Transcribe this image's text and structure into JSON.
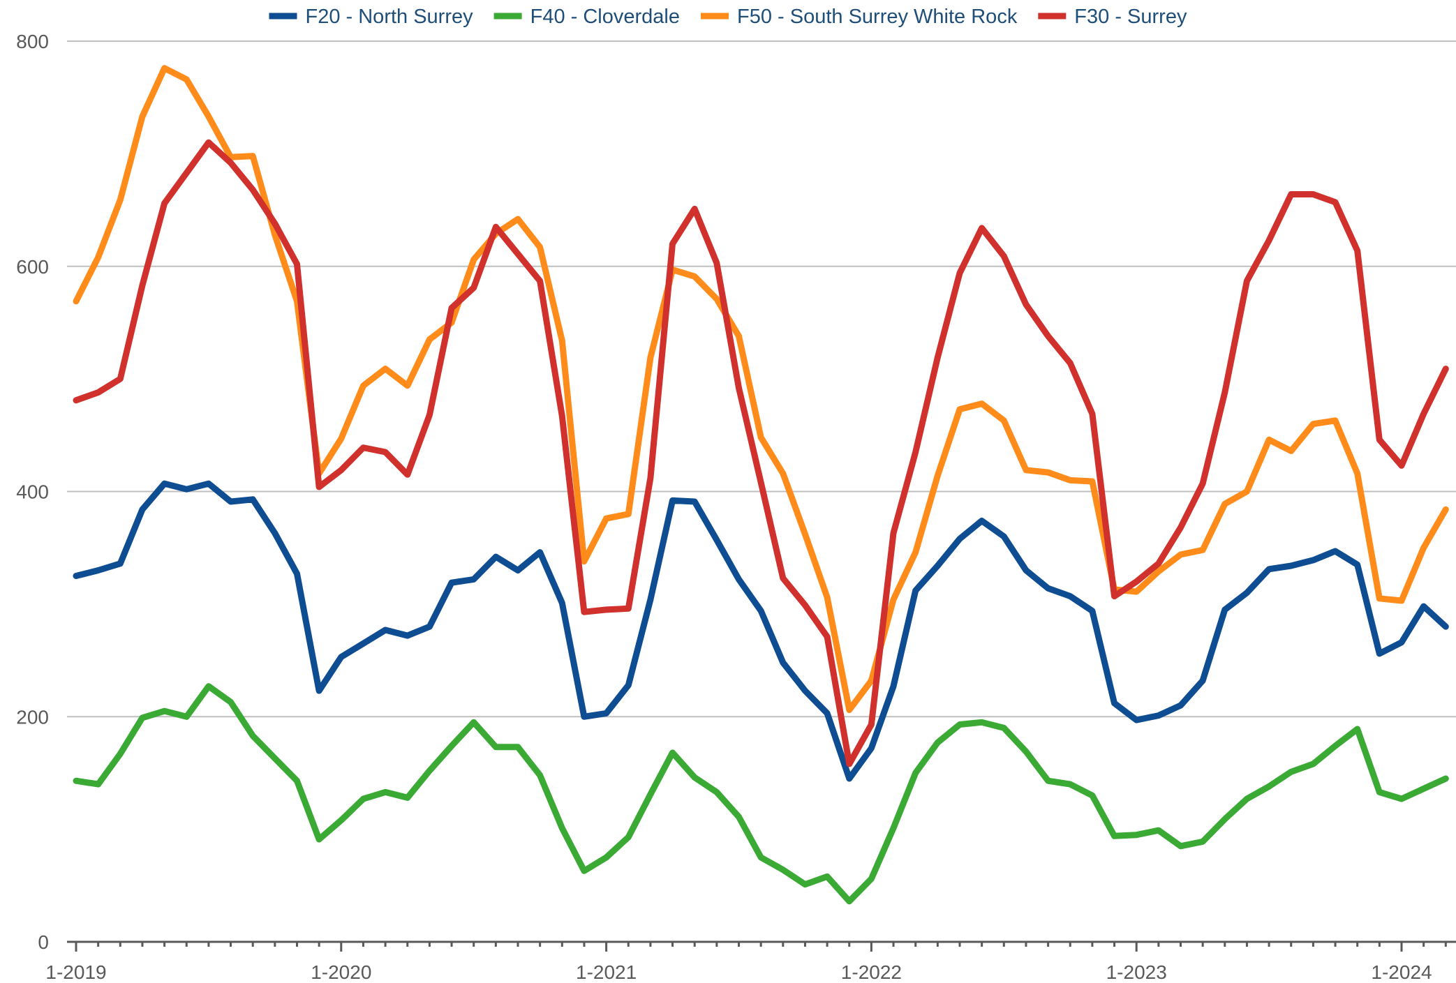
{
  "chart_data": {
    "type": "line",
    "title": "",
    "xlabel": "",
    "ylabel": "",
    "ylim": [
      0,
      800
    ],
    "yticks": [
      0,
      200,
      400,
      600,
      800
    ],
    "xticks": [
      "1-2019",
      "1-2020",
      "1-2021",
      "1-2022",
      "1-2023",
      "1-2024"
    ],
    "grid": true,
    "legend": "top",
    "x_start": "1-2019",
    "x_interval": "month",
    "series": [
      {
        "name": "F20 - North Surrey",
        "color": "#0e4d92",
        "values": [
          325,
          330,
          336,
          384,
          407,
          402,
          407,
          391,
          393,
          363,
          327,
          223,
          253,
          265,
          277,
          272,
          280,
          319,
          322,
          342,
          330,
          346,
          301,
          200,
          203,
          228,
          304,
          392,
          391,
          357,
          322,
          294,
          248,
          223,
          203,
          145,
          172,
          227,
          312,
          334,
          358,
          374,
          360,
          330,
          314,
          307,
          294,
          212,
          197,
          201,
          210,
          232,
          295,
          310,
          331,
          334,
          339,
          347,
          335,
          256,
          266,
          298,
          280
        ]
      },
      {
        "name": "F40 - Cloverdale",
        "color": "#3aaa35",
        "values": [
          143,
          140,
          167,
          199,
          205,
          200,
          227,
          213,
          183,
          163,
          143,
          91,
          108,
          127,
          133,
          128,
          152,
          174,
          195,
          173,
          173,
          148,
          101,
          63,
          75,
          93,
          131,
          168,
          146,
          133,
          111,
          75,
          64,
          51,
          58,
          36,
          56,
          101,
          150,
          177,
          193,
          195,
          190,
          169,
          143,
          140,
          130,
          94,
          95,
          99,
          85,
          89,
          109,
          127,
          138,
          151,
          158,
          174,
          189,
          133,
          127,
          136,
          145
        ]
      },
      {
        "name": "F50 - South Surrey White Rock",
        "color": "#ff8c1a",
        "values": [
          569,
          608,
          659,
          733,
          776,
          766,
          733,
          697,
          698,
          628,
          569,
          416,
          447,
          494,
          509,
          494,
          535,
          550,
          606,
          629,
          642,
          617,
          534,
          338,
          376,
          380,
          519,
          597,
          591,
          571,
          538,
          448,
          416,
          362,
          306,
          206,
          232,
          304,
          346,
          414,
          473,
          478,
          463,
          419,
          417,
          410,
          409,
          313,
          311,
          329,
          344,
          348,
          389,
          400,
          446,
          436,
          460,
          463,
          416,
          305,
          303,
          350,
          384
        ]
      },
      {
        "name": "F30 - Surrey",
        "color": "#d0312d",
        "values": [
          481,
          488,
          500,
          583,
          656,
          683,
          710,
          692,
          668,
          638,
          602,
          404,
          419,
          439,
          435,
          415,
          468,
          563,
          581,
          635,
          611,
          587,
          467,
          293,
          295,
          296,
          412,
          620,
          651,
          603,
          492,
          408,
          323,
          299,
          271,
          158,
          193,
          363,
          435,
          519,
          594,
          634,
          609,
          566,
          538,
          514,
          469,
          307,
          320,
          336,
          368,
          407,
          488,
          587,
          623,
          664,
          664,
          657,
          614,
          446,
          423,
          469,
          509
        ]
      }
    ]
  }
}
